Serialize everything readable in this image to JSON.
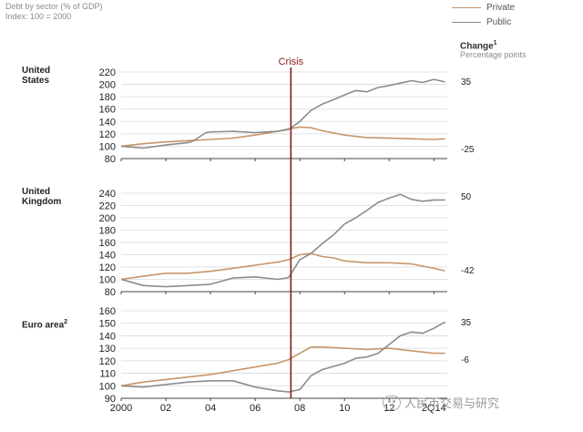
{
  "header": {
    "title": "Debt by sector (% of GDP)",
    "index_note": "Index: 100 = 2000"
  },
  "legend": {
    "items": [
      {
        "label": "Private",
        "color": "#c8956a"
      },
      {
        "label": "Public",
        "color": "#8c8c8c"
      }
    ]
  },
  "change_column": {
    "title": "Change",
    "title_superscript": "1",
    "unit": "Percentage points"
  },
  "watermark": {
    "text": "人民币交易与研究"
  },
  "chart_data": {
    "type": "line",
    "crisis_label": "Crisis",
    "crisis_x": 2007.6,
    "crisis_color": "#8b1a1a",
    "xlim": [
      2000,
      2014.6
    ],
    "x_ticks": [
      {
        "value": 2000,
        "label": "2000"
      },
      {
        "value": 2002,
        "label": "02"
      },
      {
        "value": 2004,
        "label": "04"
      },
      {
        "value": 2006,
        "label": "06"
      },
      {
        "value": 2008,
        "label": "08"
      },
      {
        "value": 2010,
        "label": "10"
      },
      {
        "value": 2012,
        "label": "12"
      },
      {
        "value": 2014,
        "label": "2Q14"
      }
    ],
    "panels": [
      {
        "region": "United\nStates",
        "ylim": [
          80,
          220
        ],
        "yticks": [
          80,
          100,
          120,
          140,
          160,
          180,
          200,
          220
        ],
        "changes": [
          {
            "series": "Public",
            "label": "35",
            "value": 35
          },
          {
            "series": "Private",
            "label": "-25",
            "value": -25
          }
        ],
        "series": [
          {
            "name": "Private",
            "x": [
              2000,
              2001,
              2002,
              2003,
              2004,
              2005,
              2006,
              2007,
              2007.5,
              2008,
              2008.5,
              2009,
              2010,
              2011,
              2012,
              2013,
              2014,
              2014.5
            ],
            "y": [
              100,
              104,
              107,
              109,
              111,
              113,
              118,
              124,
              128,
              131,
              130,
              125,
              118,
              114,
              113,
              112,
              111,
              112
            ]
          },
          {
            "name": "Public",
            "x": [
              2000,
              2001,
              2002,
              2003,
              2003.2,
              2003.8,
              2004,
              2005,
              2006,
              2007,
              2007.5,
              2008,
              2008.5,
              2009,
              2009.5,
              2010,
              2010.5,
              2011,
              2011.5,
              2012,
              2012.5,
              2013,
              2013.5,
              2014,
              2014.5
            ],
            "y": [
              100,
              97,
              102,
              106,
              108,
              122,
              123,
              124,
              122,
              124,
              127,
              140,
              158,
              168,
              175,
              183,
              190,
              188,
              195,
              198,
              202,
              206,
              203,
              208,
              204
            ]
          }
        ]
      },
      {
        "region": "United\nKingdom",
        "ylim": [
          80,
          240
        ],
        "yticks": [
          80,
          100,
          120,
          140,
          160,
          180,
          200,
          220,
          240
        ],
        "changes": [
          {
            "series": "Public",
            "label": "50",
            "value": 50
          },
          {
            "series": "Private",
            "label": "-42",
            "value": -42
          }
        ],
        "series": [
          {
            "name": "Private",
            "x": [
              2000,
              2001,
              2002,
              2003,
              2004,
              2005,
              2006,
              2007,
              2007.5,
              2008,
              2008.5,
              2009,
              2009.5,
              2010,
              2011,
              2012,
              2013,
              2014,
              2014.5
            ],
            "y": [
              100,
              105,
              110,
              110,
              113,
              118,
              123,
              128,
              132,
              140,
              142,
              137,
              135,
              130,
              127,
              127,
              125,
              118,
              114
            ]
          },
          {
            "name": "Public",
            "x": [
              2000,
              2001,
              2002,
              2003,
              2004,
              2004.5,
              2005,
              2006,
              2007,
              2007.5,
              2008,
              2008.5,
              2009,
              2009.5,
              2010,
              2010.5,
              2011,
              2011.5,
              2012,
              2012.5,
              2013,
              2013.5,
              2014,
              2014.5
            ],
            "y": [
              100,
              90,
              88,
              90,
              92,
              97,
              102,
              104,
              100,
              103,
              132,
              142,
              158,
              172,
              190,
              200,
              212,
              225,
              232,
              238,
              230,
              227,
              229,
              229
            ]
          }
        ]
      },
      {
        "region": "Euro area",
        "region_superscript": "2",
        "ylim": [
          90,
          160
        ],
        "yticks": [
          90,
          100,
          110,
          120,
          130,
          140,
          150,
          160
        ],
        "changes": [
          {
            "series": "Public",
            "label": "35",
            "value": 35
          },
          {
            "series": "Private",
            "label": "-6",
            "value": -6
          }
        ],
        "series": [
          {
            "name": "Private",
            "x": [
              2000,
              2001,
              2002,
              2003,
              2004,
              2005,
              2006,
              2007,
              2007.5,
              2008,
              2008.5,
              2009,
              2010,
              2011,
              2012,
              2013,
              2014,
              2014.5
            ],
            "y": [
              100,
              103,
              105,
              107,
              109,
              112,
              115,
              118,
              121,
              126,
              131,
              131,
              130,
              129,
              130,
              128,
              126,
              126
            ]
          },
          {
            "name": "Public",
            "x": [
              2000,
              2001,
              2002,
              2003,
              2004,
              2005,
              2006,
              2007,
              2007.5,
              2008,
              2008.5,
              2009,
              2010,
              2010.5,
              2011,
              2011.5,
              2012,
              2012.5,
              2013,
              2013.5,
              2014,
              2014.5
            ],
            "y": [
              100,
              99,
              101,
              103,
              104,
              104,
              99,
              96,
              95,
              97,
              108,
              113,
              118,
              122,
              123,
              126,
              133,
              140,
              143,
              142,
              146,
              151
            ]
          }
        ]
      }
    ]
  }
}
